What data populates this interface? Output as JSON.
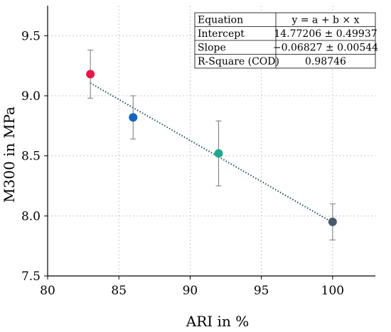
{
  "chart_data": {
    "type": "scatter",
    "title": "",
    "xlabel": "ARI in %",
    "ylabel": "M300 in MPa",
    "xlim": [
      80,
      103
    ],
    "ylim": [
      7.5,
      9.75
    ],
    "xticks": [
      80,
      85,
      90,
      95,
      100
    ],
    "yticks": [
      7.5,
      8.0,
      8.5,
      9.0,
      9.5
    ],
    "x_tick_labels": [
      "80",
      "85",
      "90",
      "95",
      "100"
    ],
    "y_tick_labels": [
      "7.5",
      "8.0",
      "8.5",
      "9.0",
      "9.5"
    ],
    "grid": true,
    "points": [
      {
        "x": 83,
        "y": 9.18,
        "err_low": 0.2,
        "err_high": 0.2,
        "color": "#e8174a"
      },
      {
        "x": 86,
        "y": 8.82,
        "err_low": 0.18,
        "err_high": 0.18,
        "color": "#1565c0"
      },
      {
        "x": 92,
        "y": 8.52,
        "err_low": 0.27,
        "err_high": 0.27,
        "color": "#1fa88f"
      },
      {
        "x": 100,
        "y": 7.95,
        "err_low": 0.15,
        "err_high": 0.15,
        "color": "#4a5a6a"
      }
    ],
    "fit": {
      "intercept": 14.77206,
      "slope": -0.06827,
      "x_range": [
        83,
        100
      ],
      "color": "#1f4f4f"
    },
    "fit_table": [
      [
        "Equation",
        "y = a + b × x"
      ],
      [
        "Intercept",
        "14.77206 ± 0.49937"
      ],
      [
        "Slope",
        "−0.06827 ± 0.00544"
      ],
      [
        "R-Square (COD)",
        "0.98746"
      ]
    ]
  }
}
